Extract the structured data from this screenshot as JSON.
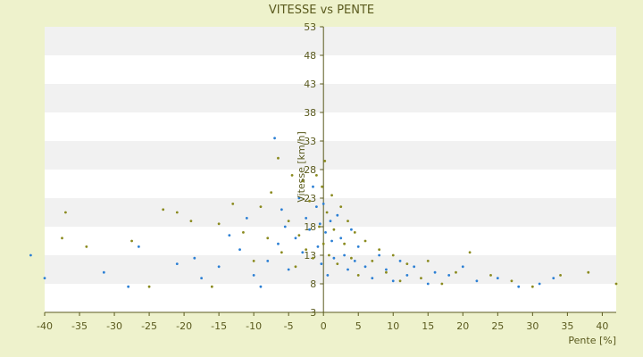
{
  "chart_data": {
    "type": "scatter",
    "title": "VITESSE vs PENTE",
    "xlabel": "Pente [%]",
    "ylabel": "Vitesse [km/h]",
    "xlim": [
      -40,
      42
    ],
    "ylim": [
      3,
      53
    ],
    "x_ticks": [
      "-40",
      "-35",
      "-30",
      "-25",
      "-20",
      "-15",
      "-10",
      "-5",
      "0",
      "5",
      "10",
      "15",
      "20",
      "25",
      "30",
      "35",
      "40"
    ],
    "y_ticks": [
      "3",
      "8",
      "13",
      "18",
      "23",
      "28",
      "33",
      "38",
      "43",
      "48",
      "53"
    ],
    "grid": true,
    "legend": "none",
    "colors": {
      "background": "#eef2cc",
      "band": "#f1f1f1",
      "plot": "#ffffff",
      "axis": "#5a5a1e",
      "series_a": "#2b7fd4",
      "series_b": "#8a8a1e"
    },
    "series": [
      {
        "values": [
          [
            -42,
            13
          ],
          [
            -40,
            9
          ],
          [
            -31.5,
            10
          ],
          [
            -28,
            7.5
          ],
          [
            -26.5,
            14.5
          ],
          [
            -21,
            11.5
          ],
          [
            -18.5,
            12.5
          ],
          [
            -17.5,
            9
          ],
          [
            -15,
            11
          ],
          [
            -13.5,
            16.5
          ],
          [
            -12,
            14
          ],
          [
            -11,
            19.5
          ],
          [
            -10,
            9.5
          ],
          [
            -9,
            7.5
          ],
          [
            -8,
            12
          ],
          [
            -7,
            33.5
          ],
          [
            -6.5,
            15
          ],
          [
            -6,
            21
          ],
          [
            -5.5,
            18
          ],
          [
            -5,
            10.5
          ],
          [
            -4,
            16
          ],
          [
            -3.5,
            23
          ],
          [
            -3,
            13.5
          ],
          [
            -2.5,
            19.5
          ],
          [
            -2,
            17.5
          ],
          [
            -1.5,
            25
          ],
          [
            -1,
            21.5
          ],
          [
            -0.8,
            14.5
          ],
          [
            -0.5,
            18.5
          ],
          [
            -0.3,
            11.5
          ],
          [
            0,
            22
          ],
          [
            0.3,
            17
          ],
          [
            0.6,
            9.5
          ],
          [
            1,
            19
          ],
          [
            1.2,
            15.5
          ],
          [
            1.5,
            12.5
          ],
          [
            2,
            20
          ],
          [
            2.5,
            16
          ],
          [
            3,
            13
          ],
          [
            3.5,
            10.5
          ],
          [
            4,
            17.5
          ],
          [
            4.5,
            12
          ],
          [
            5,
            14.5
          ],
          [
            6,
            11
          ],
          [
            7,
            9
          ],
          [
            8,
            13
          ],
          [
            9,
            10.5
          ],
          [
            10,
            8.5
          ],
          [
            11,
            12
          ],
          [
            12,
            9.5
          ],
          [
            13,
            11
          ],
          [
            15,
            8
          ],
          [
            16,
            10
          ],
          [
            18,
            9.5
          ],
          [
            20,
            11
          ],
          [
            22,
            8.5
          ],
          [
            25,
            9
          ],
          [
            28,
            7.5
          ],
          [
            31,
            8
          ],
          [
            33,
            9
          ]
        ]
      },
      {
        "values": [
          [
            -37,
            20.5
          ],
          [
            -37.5,
            16
          ],
          [
            -34,
            14.5
          ],
          [
            -27.5,
            15.5
          ],
          [
            -25,
            7.5
          ],
          [
            -23,
            21
          ],
          [
            -21,
            20.5
          ],
          [
            -19,
            19
          ],
          [
            -16,
            7.5
          ],
          [
            -15,
            18.5
          ],
          [
            -13,
            22
          ],
          [
            -11.5,
            17
          ],
          [
            -10,
            12
          ],
          [
            -9,
            21.5
          ],
          [
            -8,
            16
          ],
          [
            -7.5,
            24
          ],
          [
            -6.5,
            30
          ],
          [
            -6,
            13.5
          ],
          [
            -5,
            19
          ],
          [
            -4.5,
            27
          ],
          [
            -4,
            11
          ],
          [
            -3.5,
            16.5
          ],
          [
            -3,
            26
          ],
          [
            -2.5,
            14
          ],
          [
            -2,
            22.5
          ],
          [
            -1.5,
            12.5
          ],
          [
            -1,
            27
          ],
          [
            -0.6,
            18
          ],
          [
            -0.2,
            25
          ],
          [
            0,
            15
          ],
          [
            0.2,
            29.5
          ],
          [
            0.5,
            20.5
          ],
          [
            0.8,
            13
          ],
          [
            1.2,
            23.5
          ],
          [
            1.5,
            17.5
          ],
          [
            2,
            11.5
          ],
          [
            2.5,
            21.5
          ],
          [
            3,
            15
          ],
          [
            3.5,
            19
          ],
          [
            4,
            12.5
          ],
          [
            4.5,
            17
          ],
          [
            5,
            9.5
          ],
          [
            6,
            15.5
          ],
          [
            7,
            12
          ],
          [
            8,
            14
          ],
          [
            9,
            10
          ],
          [
            10,
            13
          ],
          [
            11,
            8.5
          ],
          [
            12,
            11.5
          ],
          [
            14,
            9
          ],
          [
            15,
            12
          ],
          [
            17,
            8
          ],
          [
            19,
            10
          ],
          [
            21,
            13.5
          ],
          [
            24,
            9.5
          ],
          [
            27,
            8.5
          ],
          [
            30,
            7.5
          ],
          [
            34,
            9.5
          ],
          [
            38,
            10
          ],
          [
            42,
            8
          ]
        ]
      }
    ]
  }
}
